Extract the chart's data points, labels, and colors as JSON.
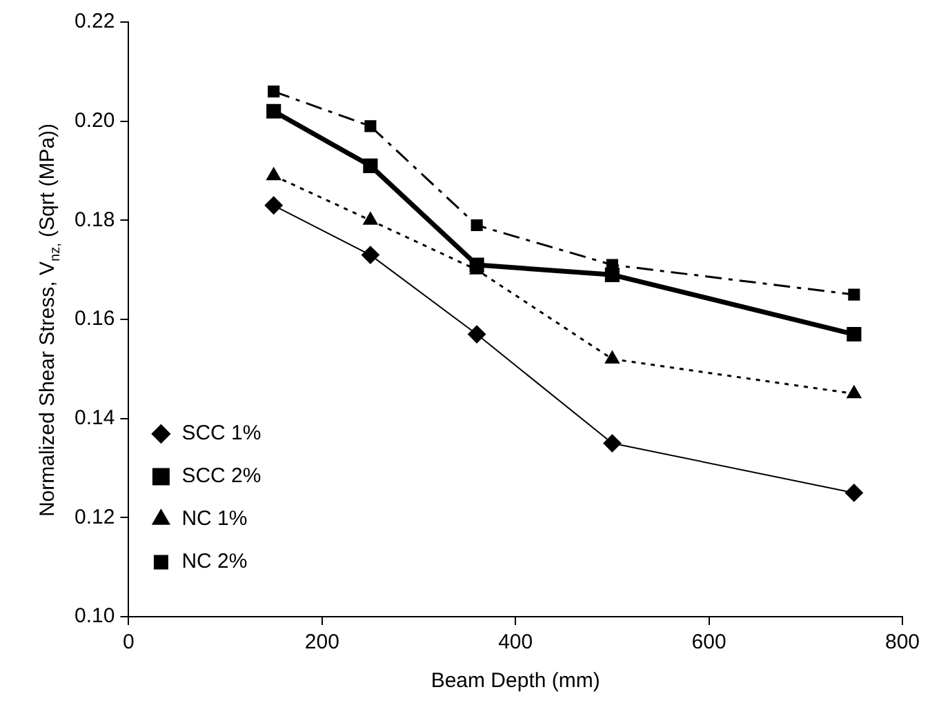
{
  "chart_data": {
    "type": "line",
    "xlabel": "Beam Depth (mm)",
    "ylabel": "Normalized Shear Stress, V$_{nz,}$ (Sqrt (MPa))",
    "x": [
      150,
      250,
      360,
      500,
      750
    ],
    "series": [
      {
        "name": "SCC 1%",
        "color": "#000000",
        "marker": "diamond",
        "line_style": "solid",
        "values": [
          0.183,
          0.173,
          0.157,
          0.135,
          0.125
        ]
      },
      {
        "name": "SCC 2%",
        "color": "#000000",
        "marker": "square",
        "line_style": "solid",
        "values": [
          0.202,
          0.191,
          0.171,
          0.169,
          0.157
        ]
      },
      {
        "name": "NC 1%",
        "color": "#000000",
        "marker": "triangle",
        "line_style": "dotted",
        "values": [
          0.189,
          0.18,
          0.17,
          0.152,
          0.145
        ]
      },
      {
        "name": "NC 2%",
        "color": "#000000",
        "marker": "square",
        "line_style": "dashed",
        "values": [
          0.206,
          0.199,
          0.179,
          0.171,
          0.165
        ]
      }
    ],
    "xlim": [
      0,
      800
    ],
    "xticks": [
      0,
      200,
      400,
      600,
      800
    ],
    "ylim": [
      0.1,
      0.22
    ],
    "yticks": [
      {
        "value": 0.1,
        "label": "0.10"
      },
      {
        "value": 0.12,
        "label": "0.12"
      },
      {
        "value": 0.14,
        "label": "0.14"
      },
      {
        "value": 0.16,
        "label": "0.16"
      },
      {
        "value": 0.18,
        "label": "0.18"
      },
      {
        "value": 0.2,
        "label": "0.20"
      },
      {
        "value": 0.22,
        "label": "0.22"
      }
    ],
    "grid": false,
    "legend": "bottom left"
  }
}
